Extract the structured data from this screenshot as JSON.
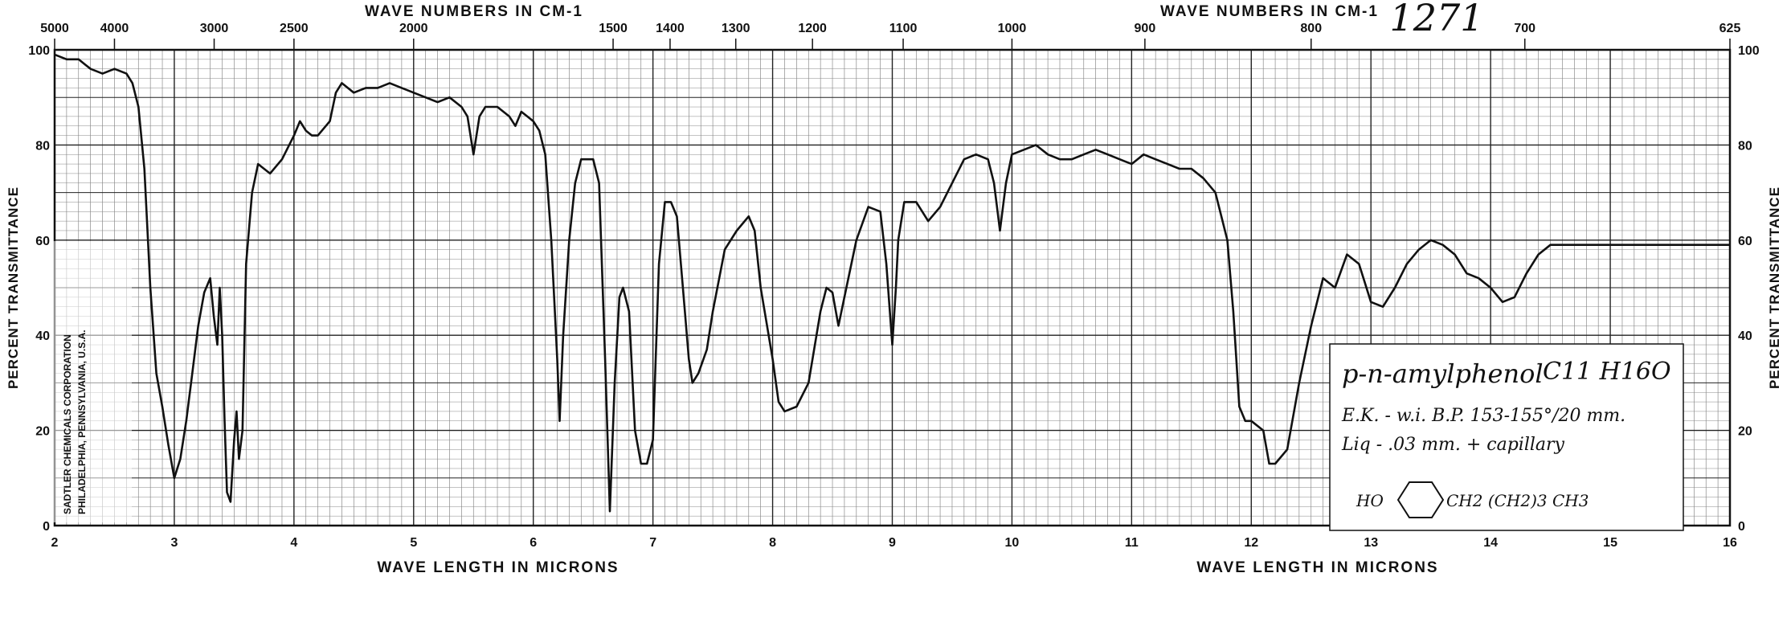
{
  "chart_data": {
    "type": "line",
    "top_axis_title_left": "WAVE NUMBERS IN CM-1",
    "top_axis_title_right": "WAVE NUMBERS IN CM-1",
    "bottom_axis_title_left": "WAVE LENGTH IN MICRONS",
    "bottom_axis_title_right": "WAVE LENGTH IN MICRONS",
    "ylabel_left": "PERCENT TRANSMITTANCE",
    "ylabel_right": "PERCENT TRANSMITTANCE",
    "xlim": [
      2,
      16
    ],
    "ylim": [
      0,
      100
    ],
    "x_ticks": [
      2,
      3,
      4,
      5,
      6,
      7,
      8,
      9,
      10,
      11,
      12,
      13,
      14,
      15,
      16
    ],
    "y_ticks": [
      0,
      20,
      40,
      60,
      80,
      100
    ],
    "right_y_tick_labels": [
      "0",
      "20",
      "40",
      "60",
      "80",
      "100"
    ],
    "top_ticks": [
      {
        "label": "5000",
        "x": 2.0
      },
      {
        "label": "4000",
        "x": 2.5
      },
      {
        "label": "3000",
        "x": 3.333
      },
      {
        "label": "2500",
        "x": 4.0
      },
      {
        "label": "2000",
        "x": 5.0
      },
      {
        "label": "1500",
        "x": 6.667
      },
      {
        "label": "1400",
        "x": 7.143
      },
      {
        "label": "1300",
        "x": 7.692
      },
      {
        "label": "1200",
        "x": 8.333
      },
      {
        "label": "1100",
        "x": 9.091
      },
      {
        "label": "1000",
        "x": 10.0
      },
      {
        "label": "900",
        "x": 11.111
      },
      {
        "label": "800",
        "x": 12.5
      },
      {
        "label": "700",
        "x": 14.286
      },
      {
        "label": "625",
        "x": 16.0
      }
    ],
    "grid": true,
    "series": [
      {
        "points": [
          [
            2.0,
            99
          ],
          [
            2.1,
            98
          ],
          [
            2.2,
            98
          ],
          [
            2.25,
            97
          ],
          [
            2.3,
            96
          ],
          [
            2.4,
            95
          ],
          [
            2.5,
            96
          ],
          [
            2.6,
            95
          ],
          [
            2.65,
            93
          ],
          [
            2.7,
            88
          ],
          [
            2.75,
            75
          ],
          [
            2.8,
            50
          ],
          [
            2.85,
            32
          ],
          [
            2.9,
            25
          ],
          [
            2.95,
            17
          ],
          [
            3.0,
            10
          ],
          [
            3.05,
            14
          ],
          [
            3.1,
            22
          ],
          [
            3.15,
            32
          ],
          [
            3.2,
            42
          ],
          [
            3.25,
            49
          ],
          [
            3.3,
            52
          ],
          [
            3.33,
            44
          ],
          [
            3.36,
            38
          ],
          [
            3.38,
            50
          ],
          [
            3.4,
            40
          ],
          [
            3.42,
            22
          ],
          [
            3.44,
            7
          ],
          [
            3.47,
            5
          ],
          [
            3.5,
            18
          ],
          [
            3.52,
            24
          ],
          [
            3.54,
            14
          ],
          [
            3.57,
            20
          ],
          [
            3.6,
            55
          ],
          [
            3.65,
            70
          ],
          [
            3.7,
            76
          ],
          [
            3.75,
            75
          ],
          [
            3.8,
            74
          ],
          [
            3.9,
            77
          ],
          [
            4.0,
            82
          ],
          [
            4.05,
            85
          ],
          [
            4.1,
            83
          ],
          [
            4.15,
            82
          ],
          [
            4.2,
            82
          ],
          [
            4.3,
            85
          ],
          [
            4.35,
            91
          ],
          [
            4.4,
            93
          ],
          [
            4.5,
            91
          ],
          [
            4.6,
            92
          ],
          [
            4.7,
            92
          ],
          [
            4.8,
            93
          ],
          [
            4.9,
            92
          ],
          [
            5.0,
            91
          ],
          [
            5.1,
            90
          ],
          [
            5.2,
            89
          ],
          [
            5.3,
            90
          ],
          [
            5.4,
            88
          ],
          [
            5.45,
            86
          ],
          [
            5.5,
            78
          ],
          [
            5.55,
            86
          ],
          [
            5.6,
            88
          ],
          [
            5.7,
            88
          ],
          [
            5.8,
            86
          ],
          [
            5.85,
            84
          ],
          [
            5.9,
            87
          ],
          [
            5.95,
            86
          ],
          [
            6.0,
            85
          ],
          [
            6.05,
            83
          ],
          [
            6.1,
            78
          ],
          [
            6.15,
            60
          ],
          [
            6.2,
            35
          ],
          [
            6.22,
            22
          ],
          [
            6.25,
            40
          ],
          [
            6.3,
            60
          ],
          [
            6.35,
            72
          ],
          [
            6.4,
            77
          ],
          [
            6.5,
            77
          ],
          [
            6.55,
            72
          ],
          [
            6.6,
            35
          ],
          [
            6.64,
            3
          ],
          [
            6.68,
            30
          ],
          [
            6.72,
            48
          ],
          [
            6.75,
            50
          ],
          [
            6.8,
            45
          ],
          [
            6.85,
            20
          ],
          [
            6.9,
            13
          ],
          [
            6.95,
            13
          ],
          [
            7.0,
            18
          ],
          [
            7.05,
            55
          ],
          [
            7.1,
            68
          ],
          [
            7.15,
            68
          ],
          [
            7.2,
            65
          ],
          [
            7.25,
            50
          ],
          [
            7.3,
            35
          ],
          [
            7.33,
            30
          ],
          [
            7.38,
            32
          ],
          [
            7.45,
            37
          ],
          [
            7.5,
            45
          ],
          [
            7.6,
            58
          ],
          [
            7.7,
            62
          ],
          [
            7.8,
            65
          ],
          [
            7.85,
            62
          ],
          [
            7.9,
            50
          ],
          [
            8.0,
            35
          ],
          [
            8.05,
            26
          ],
          [
            8.1,
            24
          ],
          [
            8.2,
            25
          ],
          [
            8.3,
            30
          ],
          [
            8.4,
            45
          ],
          [
            8.45,
            50
          ],
          [
            8.5,
            49
          ],
          [
            8.55,
            42
          ],
          [
            8.6,
            48
          ],
          [
            8.7,
            60
          ],
          [
            8.8,
            67
          ],
          [
            8.9,
            66
          ],
          [
            8.95,
            55
          ],
          [
            9.0,
            38
          ],
          [
            9.03,
            50
          ],
          [
            9.05,
            60
          ],
          [
            9.1,
            68
          ],
          [
            9.2,
            68
          ],
          [
            9.3,
            64
          ],
          [
            9.4,
            67
          ],
          [
            9.5,
            72
          ],
          [
            9.6,
            77
          ],
          [
            9.7,
            78
          ],
          [
            9.8,
            77
          ],
          [
            9.85,
            72
          ],
          [
            9.9,
            62
          ],
          [
            9.95,
            72
          ],
          [
            10.0,
            78
          ],
          [
            10.1,
            79
          ],
          [
            10.2,
            80
          ],
          [
            10.3,
            78
          ],
          [
            10.4,
            77
          ],
          [
            10.5,
            77
          ],
          [
            10.6,
            78
          ],
          [
            10.7,
            79
          ],
          [
            10.8,
            78
          ],
          [
            10.9,
            77
          ],
          [
            11.0,
            76
          ],
          [
            11.1,
            78
          ],
          [
            11.2,
            77
          ],
          [
            11.3,
            76
          ],
          [
            11.4,
            75
          ],
          [
            11.5,
            75
          ],
          [
            11.6,
            73
          ],
          [
            11.7,
            70
          ],
          [
            11.8,
            60
          ],
          [
            11.85,
            45
          ],
          [
            11.9,
            25
          ],
          [
            11.95,
            22
          ],
          [
            12.0,
            22
          ],
          [
            12.1,
            20
          ],
          [
            12.15,
            13
          ],
          [
            12.2,
            13
          ],
          [
            12.3,
            16
          ],
          [
            12.4,
            30
          ],
          [
            12.5,
            42
          ],
          [
            12.6,
            52
          ],
          [
            12.7,
            50
          ],
          [
            12.8,
            57
          ],
          [
            12.9,
            55
          ],
          [
            13.0,
            47
          ],
          [
            13.1,
            46
          ],
          [
            13.2,
            50
          ],
          [
            13.3,
            55
          ],
          [
            13.4,
            58
          ],
          [
            13.5,
            60
          ],
          [
            13.6,
            59
          ],
          [
            13.7,
            57
          ],
          [
            13.8,
            53
          ],
          [
            13.9,
            52
          ],
          [
            14.0,
            50
          ],
          [
            14.1,
            47
          ],
          [
            14.2,
            48
          ],
          [
            14.3,
            53
          ],
          [
            14.4,
            57
          ],
          [
            14.5,
            59
          ],
          [
            14.6,
            59
          ],
          [
            14.8,
            59
          ],
          [
            15.0,
            59
          ],
          [
            15.2,
            59
          ],
          [
            15.4,
            59
          ],
          [
            15.6,
            59
          ],
          [
            15.8,
            59
          ],
          [
            16.0,
            59
          ]
        ]
      }
    ]
  },
  "annotations": {
    "sample_number": "1271",
    "compound": "p-n-amylphenol",
    "formula": "C11 H16O",
    "source_line": "E.K. - w.i.   B.P. 153-155°/20 mm.",
    "cell_line": "Liq - .03 mm. + capillary",
    "structure_left": "HO",
    "structure_right": "CH2 (CH2)3 CH3",
    "stamp_line_1": "SADTLER CHEMICALS CORPORATION",
    "stamp_line_2": "PHILADELPHIA, PENNSYLVANIA, U.S.A."
  },
  "colors": {
    "ink": "#111111",
    "grid": "#555555",
    "paper": "#ffffff"
  }
}
